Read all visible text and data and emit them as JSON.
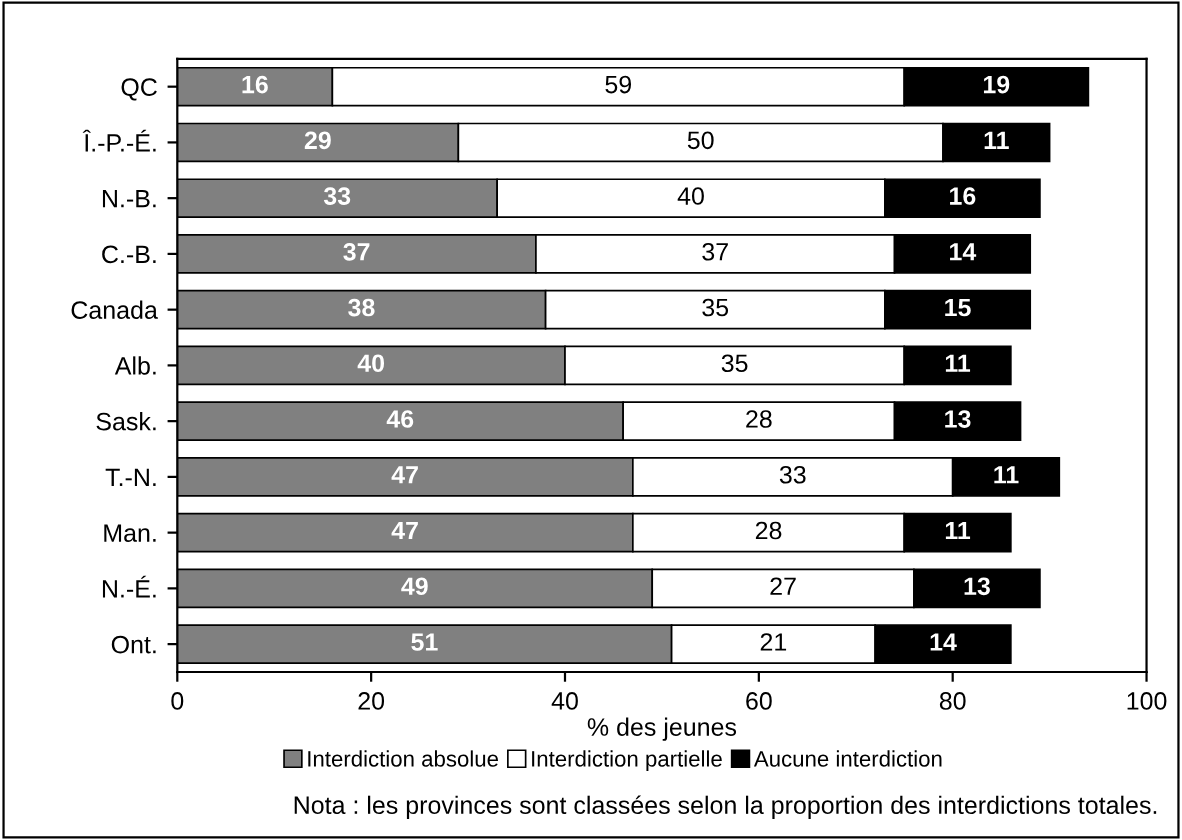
{
  "chart_data": {
    "type": "bar",
    "orientation": "horizontal",
    "stacked": true,
    "data_labels": true,
    "categories": [
      "QC",
      "Î.-P.-É.",
      "N.-B.",
      "C.-B.",
      "Canada",
      "Alb.",
      "Sask.",
      "T.-N.",
      "Man.",
      "N.-É.",
      "Ont."
    ],
    "series": [
      {
        "name": "Interdiction absolue",
        "color": "#808080",
        "values": [
          16,
          29,
          33,
          37,
          38,
          40,
          46,
          47,
          47,
          49,
          51
        ]
      },
      {
        "name": "Interdiction partielle",
        "color": "#ffffff",
        "values": [
          59,
          50,
          40,
          37,
          35,
          35,
          28,
          33,
          28,
          27,
          21
        ]
      },
      {
        "name": "Aucune interdiction",
        "color": "#000000",
        "values": [
          19,
          11,
          16,
          14,
          15,
          11,
          13,
          11,
          11,
          13,
          14
        ]
      }
    ],
    "xlabel": "% des jeunes",
    "xlim": [
      0,
      100
    ],
    "xticks": [
      0,
      20,
      40,
      60,
      80,
      100
    ],
    "grid": false,
    "legend": "bottom",
    "annotations": [
      "Nota : les provinces sont classées selon la proportion des interdictions totales."
    ]
  }
}
